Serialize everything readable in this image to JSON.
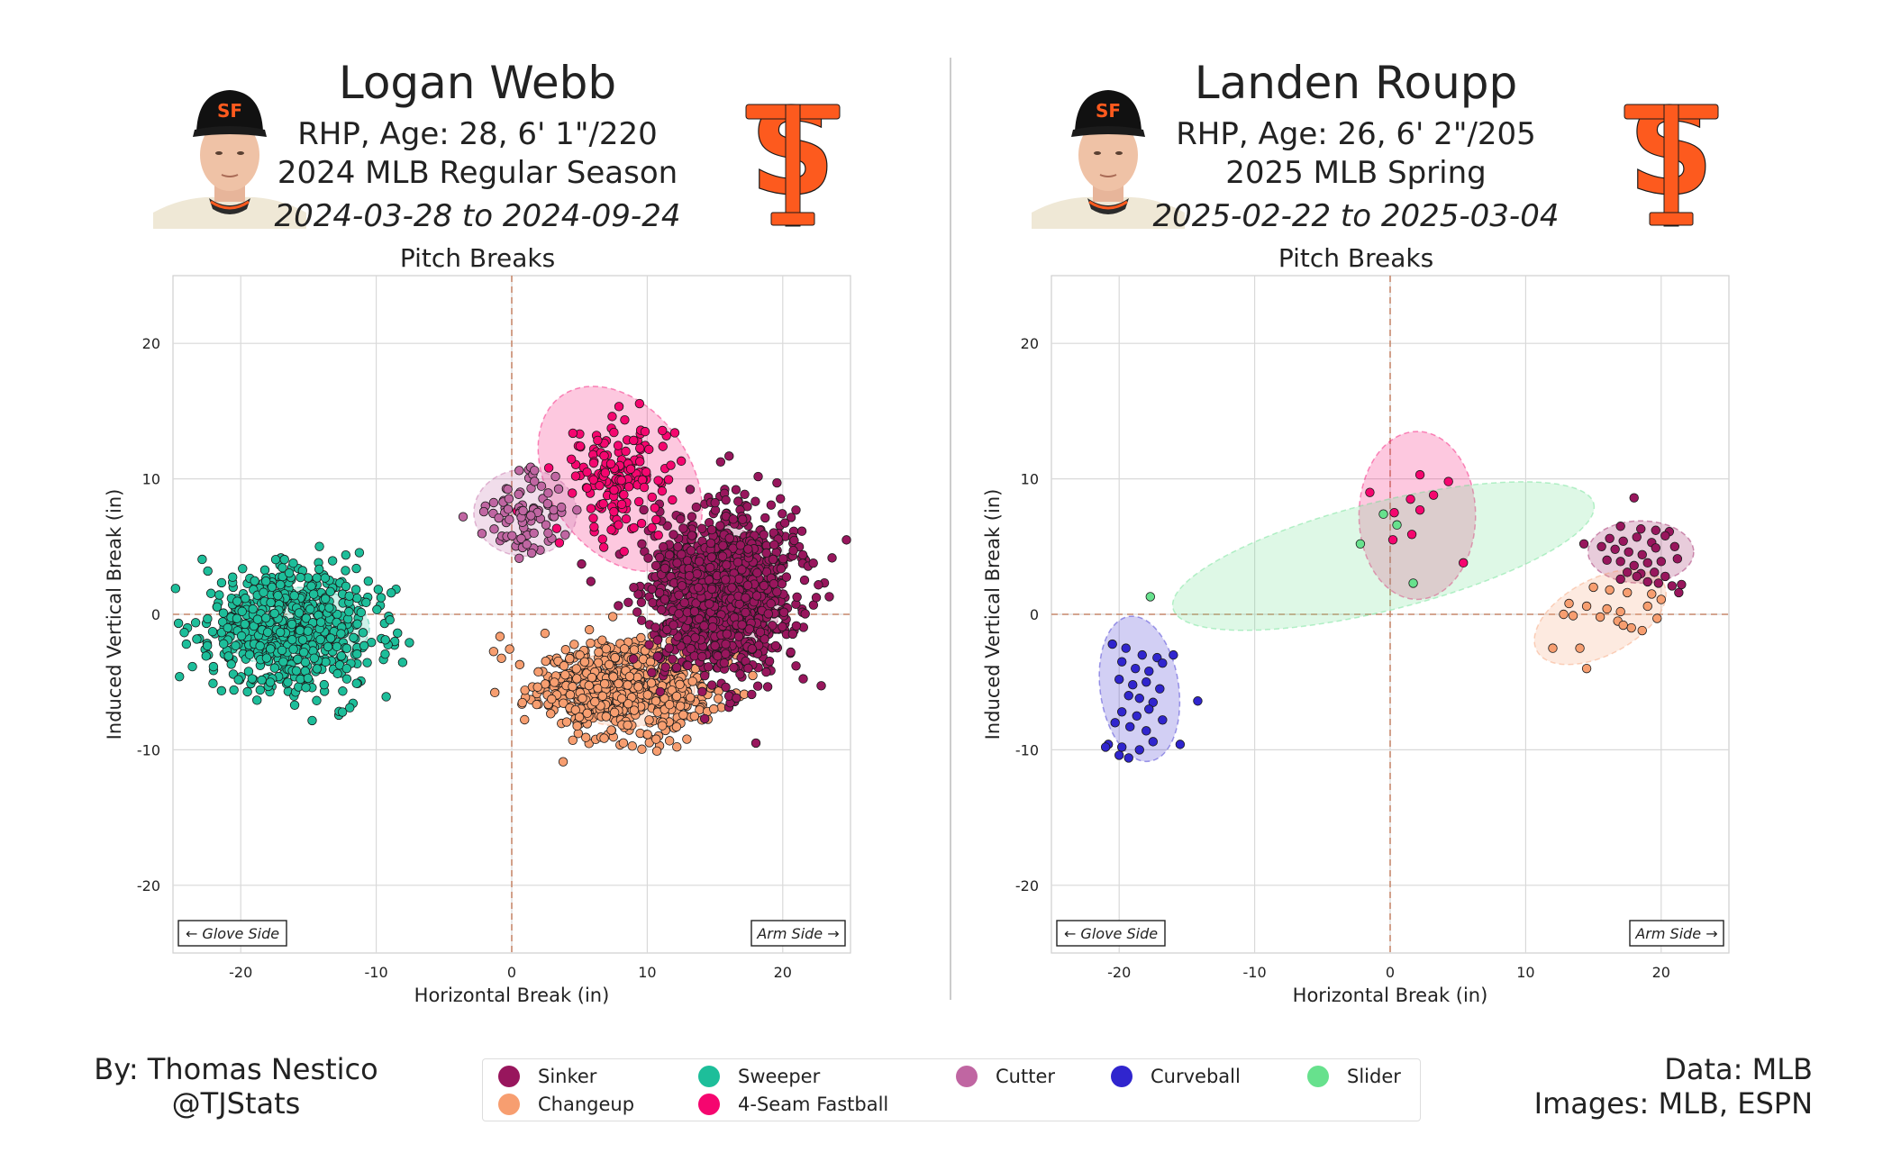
{
  "pitch_colors": {
    "Sinker": "#98165d",
    "Changeup": "#f79e70",
    "Sweeper": "#1dbe9a",
    "4-Seam Fastball": "#f5066f",
    "Cutter": "#c066a2",
    "Curveball": "#3025ce",
    "Slider": "#67e18d"
  },
  "left": {
    "player_name": "Logan Webb",
    "bio": "RHP, Age: 28, 6' 1\"/220",
    "season": "2024 MLB Regular Season",
    "dates": "2024-03-28 to 2024-09-24",
    "chart_title": "Pitch Breaks",
    "xlabel": "Horizontal Break (in)",
    "ylabel": "Induced Vertical Break (in)",
    "glove_side": "← Glove Side",
    "arm_side": "Arm Side →"
  },
  "right": {
    "player_name": "Landen Roupp",
    "bio": "RHP, Age: 26, 6' 2\"/205",
    "season": "2025 MLB Spring",
    "dates": "2025-02-22 to 2025-03-04",
    "chart_title": "Pitch Breaks",
    "xlabel": "Horizontal Break (in)",
    "ylabel": "Induced Vertical Break (in)",
    "glove_side": "← Glove Side",
    "arm_side": "Arm Side →"
  },
  "chart_data": [
    {
      "type": "scatter",
      "title": "Pitch Breaks",
      "xlabel": "Horizontal Break (in)",
      "ylabel": "Induced Vertical Break (in)",
      "xlim": [
        -25,
        25
      ],
      "ylim": [
        -25,
        25
      ],
      "xticks": [
        -20,
        -10,
        0,
        10,
        20
      ],
      "yticks": [
        -20,
        -10,
        0,
        10,
        20
      ],
      "grid": true,
      "series": [
        {
          "name": "Sweeper",
          "center": [
            -16,
            -1
          ],
          "spread": [
            3.2,
            2.4
          ],
          "n": 650,
          "ellipse": {
            "center": [
              -16,
              -1
            ],
            "semi_axes": [
              5.5,
              3.0
            ],
            "angle": 0
          }
        },
        {
          "name": "Changeup",
          "center": [
            8.5,
            -5.5
          ],
          "spread": [
            3.3,
            1.7
          ],
          "n": 650,
          "ellipse": {
            "center": [
              8.5,
              -5.5
            ],
            "semi_axes": [
              5.0,
              2.8
            ],
            "angle": 0
          }
        },
        {
          "name": "Sinker",
          "center": [
            15.5,
            1.5
          ],
          "spread": [
            2.6,
            2.9
          ],
          "n": 1250,
          "ellipse": {
            "center": [
              15.5,
              1.5
            ],
            "semi_axes": [
              4.5,
              5.0
            ],
            "angle": 0
          }
        },
        {
          "name": "4-Seam Fastball",
          "center": [
            8,
            10
          ],
          "spread": [
            1.9,
            2.1
          ],
          "n": 170,
          "ellipse": {
            "center": [
              8,
              10
            ],
            "semi_axes": [
              5.2,
              7.5
            ],
            "angle": 35
          }
        },
        {
          "name": "Cutter",
          "center": [
            1,
            7.5
          ],
          "spread": [
            1.7,
            1.5
          ],
          "n": 85,
          "ellipse": {
            "center": [
              1,
              7.5
            ],
            "semi_axes": [
              3.8,
              3.2
            ],
            "angle": 0
          }
        }
      ]
    },
    {
      "type": "scatter",
      "title": "Pitch Breaks",
      "xlabel": "Horizontal Break (in)",
      "ylabel": "Induced Vertical Break (in)",
      "xlim": [
        -25,
        25
      ],
      "ylim": [
        -25,
        25
      ],
      "xticks": [
        -20,
        -10,
        0,
        10,
        20
      ],
      "yticks": [
        -20,
        -10,
        0,
        10,
        20
      ],
      "grid": true,
      "series": [
        {
          "name": "Curveball",
          "points": [
            [
              -20.5,
              -2.2
            ],
            [
              -19.5,
              -2.5
            ],
            [
              -18.3,
              -3.0
            ],
            [
              -17.2,
              -3.2
            ],
            [
              -16.0,
              -3.0
            ],
            [
              -19.8,
              -3.5
            ],
            [
              -18.8,
              -4.0
            ],
            [
              -17.8,
              -4.2
            ],
            [
              -16.8,
              -3.6
            ],
            [
              -20.0,
              -4.8
            ],
            [
              -19.0,
              -5.2
            ],
            [
              -18.0,
              -5.0
            ],
            [
              -17.0,
              -5.5
            ],
            [
              -19.3,
              -6.0
            ],
            [
              -18.5,
              -6.2
            ],
            [
              -17.5,
              -6.5
            ],
            [
              -19.8,
              -7.2
            ],
            [
              -18.7,
              -7.5
            ],
            [
              -17.8,
              -7.0
            ],
            [
              -20.3,
              -8.0
            ],
            [
              -19.2,
              -8.3
            ],
            [
              -18.0,
              -8.6
            ],
            [
              -20.8,
              -9.6
            ],
            [
              -19.8,
              -9.8
            ],
            [
              -18.5,
              -10.0
            ],
            [
              -20.0,
              -10.4
            ],
            [
              -17.5,
              -9.4
            ],
            [
              -15.5,
              -9.6
            ],
            [
              -14.2,
              -6.4
            ],
            [
              -21.0,
              -9.8
            ],
            [
              -19.3,
              -10.6
            ],
            [
              -16.8,
              -7.8
            ]
          ],
          "ellipse": {
            "center": [
              -18.5,
              -5.5
            ],
            "semi_axes": [
              2.9,
              5.4
            ],
            "angle": 8
          }
        },
        {
          "name": "Sinker",
          "points": [
            [
              18.0,
              8.6
            ],
            [
              17.0,
              6.5
            ],
            [
              18.5,
              6.3
            ],
            [
              19.6,
              6.2
            ],
            [
              20.6,
              6.1
            ],
            [
              16.2,
              5.6
            ],
            [
              17.2,
              5.4
            ],
            [
              18.2,
              5.7
            ],
            [
              19.3,
              5.3
            ],
            [
              20.3,
              5.8
            ],
            [
              15.6,
              5.0
            ],
            [
              16.6,
              4.8
            ],
            [
              17.6,
              4.6
            ],
            [
              18.6,
              4.4
            ],
            [
              19.6,
              4.9
            ],
            [
              21.0,
              5.0
            ],
            [
              16.0,
              4.0
            ],
            [
              17.0,
              3.9
            ],
            [
              18.0,
              3.6
            ],
            [
              19.0,
              3.8
            ],
            [
              20.0,
              3.9
            ],
            [
              21.2,
              4.1
            ],
            [
              17.5,
              3.1
            ],
            [
              18.5,
              3.0
            ],
            [
              19.5,
              3.1
            ],
            [
              20.3,
              2.8
            ],
            [
              17.0,
              2.6
            ],
            [
              19.0,
              2.4
            ],
            [
              20.8,
              2.1
            ],
            [
              21.5,
              2.2
            ],
            [
              21.3,
              1.6
            ],
            [
              14.3,
              5.2
            ],
            [
              19.8,
              2.3
            ],
            [
              18.2,
              2.8
            ]
          ],
          "ellipse": {
            "center": [
              18.5,
              4.6
            ],
            "semi_axes": [
              3.9,
              2.3
            ],
            "angle": 0
          }
        },
        {
          "name": "Changeup",
          "points": [
            [
              15.0,
              2.0
            ],
            [
              16.2,
              1.8
            ],
            [
              17.5,
              1.6
            ],
            [
              19.3,
              1.5
            ],
            [
              20.0,
              1.1
            ],
            [
              13.2,
              0.8
            ],
            [
              14.5,
              0.6
            ],
            [
              16.0,
              0.4
            ],
            [
              17.0,
              0.2
            ],
            [
              19.0,
              0.6
            ],
            [
              12.8,
              0.0
            ],
            [
              13.5,
              -0.1
            ],
            [
              15.5,
              -0.2
            ],
            [
              16.8,
              -0.5
            ],
            [
              17.8,
              -1.0
            ],
            [
              18.6,
              -1.2
            ],
            [
              12.0,
              -2.5
            ],
            [
              14.0,
              -2.5
            ],
            [
              14.5,
              -4.0
            ],
            [
              17.2,
              -0.8
            ],
            [
              19.7,
              -0.3
            ]
          ],
          "ellipse": {
            "center": [
              15.5,
              -0.2
            ],
            "semi_axes": [
              5.3,
              2.8
            ],
            "angle": 28
          }
        },
        {
          "name": "4-Seam Fastball",
          "points": [
            [
              2.2,
              10.3
            ],
            [
              4.3,
              9.8
            ],
            [
              -1.5,
              9.0
            ],
            [
              1.5,
              8.5
            ],
            [
              0.3,
              7.5
            ],
            [
              2.2,
              7.7
            ],
            [
              1.6,
              5.9
            ],
            [
              0.2,
              5.5
            ],
            [
              5.4,
              3.8
            ],
            [
              3.2,
              8.8
            ]
          ],
          "ellipse": {
            "center": [
              2.0,
              7.3
            ],
            "semi_axes": [
              4.3,
              6.2
            ],
            "angle": 0
          }
        },
        {
          "name": "Slider",
          "points": [
            [
              -17.7,
              1.3
            ],
            [
              -0.5,
              7.4
            ],
            [
              0.5,
              6.6
            ],
            [
              -2.2,
              5.2
            ],
            [
              1.7,
              2.3
            ]
          ],
          "ellipse": {
            "center": [
              -0.5,
              4.3
            ],
            "semi_axes": [
              16.0,
              4.0
            ],
            "angle": 14
          }
        }
      ]
    }
  ],
  "legend": {
    "entries": [
      "Sinker",
      "Changeup",
      "Sweeper",
      "4-Seam Fastball",
      "Cutter",
      "Curveball",
      "Slider"
    ]
  },
  "credits": {
    "author": "By: Thomas Nestico",
    "handle": "@TJStats",
    "data_source": "Data: MLB",
    "images_source": "Images: MLB, ESPN"
  },
  "colors": {
    "zero_line": "#c98a6e",
    "grid": "#d9d9d9",
    "team_orange": "#fd5a1e"
  }
}
